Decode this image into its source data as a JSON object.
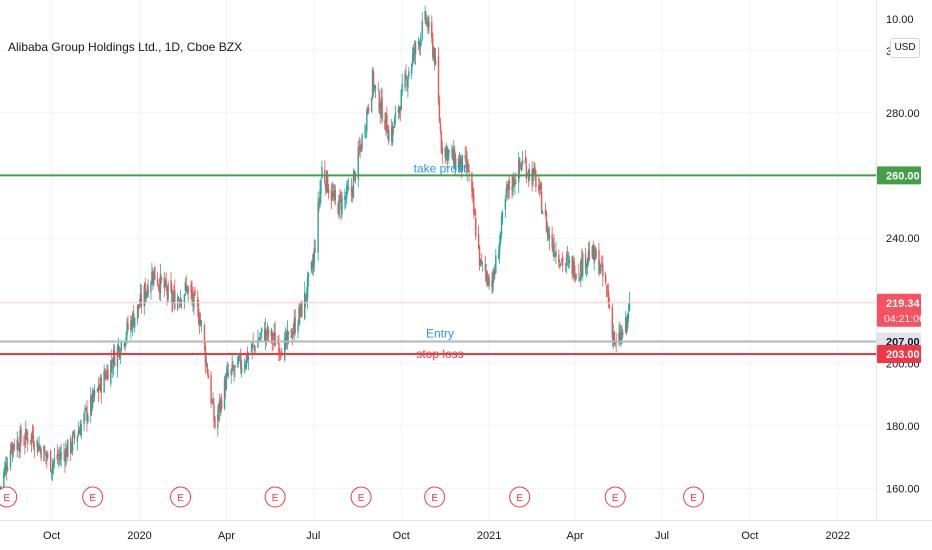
{
  "header": {
    "symbol_title": "Alibaba Group Holdings Ltd., 1D, Cboe BZX",
    "currency": "USD"
  },
  "colors": {
    "up": "#26a69a",
    "down": "#ef5350",
    "take_profit": "#43a047",
    "stop_loss": "#f23645",
    "entry": "#b2b5be",
    "last_price": "#f7525f",
    "annotation_text": "#2196f3",
    "earnings": "#f23645"
  },
  "chart_data": {
    "type": "candlestick",
    "title": "Alibaba Group Holdings Ltd., 1D, Cboe BZX",
    "ylim": [
      150,
      316
    ],
    "y_ticks": [
      160,
      180,
      200,
      240,
      280
    ],
    "y_tick_labels": [
      "160.00",
      "180.00",
      "200.00",
      "240.00",
      "280.00"
    ],
    "y_top_label": "10.00",
    "y_partial_label": "30",
    "x_ticks": [
      "Oct",
      "2020",
      "Apr",
      "Jul",
      "Oct",
      "2021",
      "Apr",
      "Jul",
      "Oct",
      "2022"
    ],
    "x_tick_dates": [
      "2019-10-01",
      "2020-01-01",
      "2020-04-01",
      "2020-07-01",
      "2020-10-01",
      "2021-01-01",
      "2021-04-01",
      "2021-07-01",
      "2021-10-01",
      "2022-01-01"
    ],
    "x_range": [
      "2019-08-08",
      "2022-02-10"
    ],
    "closes_anchor": [
      [
        "2019-08-08",
        160
      ],
      [
        "2019-08-20",
        174
      ],
      [
        "2019-09-10",
        177
      ],
      [
        "2019-10-01",
        168
      ],
      [
        "2019-10-20",
        173
      ],
      [
        "2019-11-10",
        186
      ],
      [
        "2019-12-10",
        205
      ],
      [
        "2020-01-02",
        219
      ],
      [
        "2020-01-15",
        229
      ],
      [
        "2020-02-05",
        220
      ],
      [
        "2020-02-20",
        224
      ],
      [
        "2020-03-05",
        214
      ],
      [
        "2020-03-20",
        180
      ],
      [
        "2020-04-01",
        195
      ],
      [
        "2020-04-20",
        201
      ],
      [
        "2020-05-10",
        210
      ],
      [
        "2020-06-01",
        205
      ],
      [
        "2020-06-20",
        218
      ],
      [
        "2020-07-01",
        232
      ],
      [
        "2020-07-10",
        262
      ],
      [
        "2020-07-25",
        250
      ],
      [
        "2020-08-10",
        255
      ],
      [
        "2020-08-20",
        270
      ],
      [
        "2020-09-01",
        290
      ],
      [
        "2020-09-20",
        272
      ],
      [
        "2020-10-10",
        295
      ],
      [
        "2020-10-27",
        310
      ],
      [
        "2020-11-05",
        298
      ],
      [
        "2020-11-12",
        270
      ],
      [
        "2020-11-25",
        265
      ],
      [
        "2020-12-10",
        262
      ],
      [
        "2020-12-23",
        231
      ],
      [
        "2021-01-05",
        226
      ],
      [
        "2021-01-20",
        255
      ],
      [
        "2021-02-05",
        264
      ],
      [
        "2021-02-20",
        258
      ],
      [
        "2021-03-05",
        240
      ],
      [
        "2021-03-20",
        232
      ],
      [
        "2021-04-05",
        230
      ],
      [
        "2021-04-15",
        235
      ],
      [
        "2021-04-25",
        233
      ],
      [
        "2021-05-05",
        222
      ],
      [
        "2021-05-13",
        205
      ],
      [
        "2021-05-25",
        212
      ],
      [
        "2021-05-28",
        219.34
      ]
    ],
    "levels": [
      {
        "label": "take profit",
        "price": 260.0,
        "price_label": "260.00"
      },
      {
        "label": "Entry",
        "price": 207.0,
        "price_label": "207.00"
      },
      {
        "label": "stop loss",
        "price": 203.0,
        "price_label": "203.00"
      }
    ],
    "last_price": {
      "price": 219.34,
      "label": "219.34",
      "countdown": "04:21:06"
    },
    "earnings_marker_label": "E",
    "earnings_dates": [
      "2019-08-15",
      "2019-11-13",
      "2020-02-13",
      "2020-05-22",
      "2020-08-20",
      "2020-11-05",
      "2021-02-02",
      "2021-05-13",
      "2021-08-03"
    ],
    "grid": true
  }
}
